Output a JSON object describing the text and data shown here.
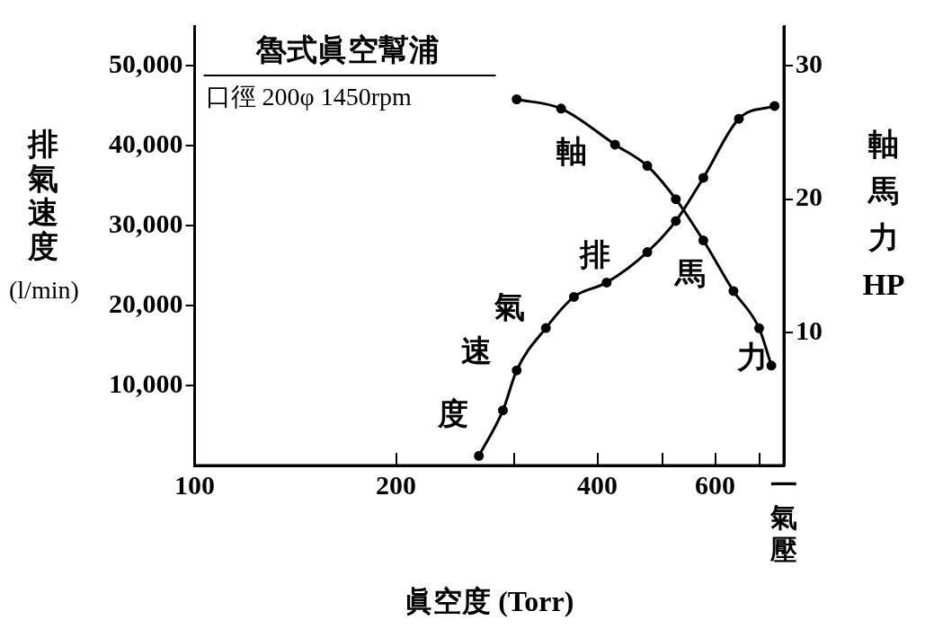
{
  "chart_data": {
    "type": "line",
    "title": "魯式眞空幫浦",
    "subtitle": "口徑 200φ 1450rpm",
    "xlabel": "眞空度 (Torr)",
    "ylabel": "排氣速度 (l/min)",
    "y2label": "軸馬力 HP",
    "log": "x",
    "xlim": [
      100,
      760
    ],
    "xticks": [
      100,
      200,
      {
        "value": 300,
        "label": null
      },
      400,
      {
        "value": 500,
        "label": null
      },
      600,
      {
        "value": 700,
        "label": null
      },
      {
        "value": 760,
        "label": "一氣壓"
      }
    ],
    "ylim": [
      0,
      55000
    ],
    "yticks": [
      {
        "value": 10000,
        "label": "10,000"
      },
      {
        "value": 20000,
        "label": "20,000"
      },
      {
        "value": 30000,
        "label": "30,000"
      },
      {
        "value": 40000,
        "label": "40,000"
      },
      {
        "value": 50000,
        "label": "50,000"
      }
    ],
    "y2lim": [
      0,
      33
    ],
    "y2ticks": [
      10,
      20,
      30
    ],
    "annotations": [
      "軸",
      "馬",
      "力",
      "排",
      "氣",
      "速",
      "度"
    ],
    "grid": false,
    "legend": false,
    "marker": "circle",
    "line_style": "solid",
    "series": [
      {
        "color": "#000000",
        "x": [
          266,
          289,
          303,
          335,
          369,
          413,
          475,
          524,
          576,
          651,
          736
        ],
        "values": [
          1200,
          6900,
          11900,
          17200,
          21100,
          22900,
          26700,
          30600,
          36000,
          43400,
          45000
        ]
      },
      {
        "color": "#000000",
        "axis": "y2",
        "x": [
          303,
          353,
          425,
          475,
          524,
          576,
          639,
          698,
          728
        ],
        "values": [
          27.5,
          26.8,
          24.1,
          22.5,
          20,
          16.9,
          13.1,
          10.3,
          7.5
        ]
      }
    ]
  }
}
